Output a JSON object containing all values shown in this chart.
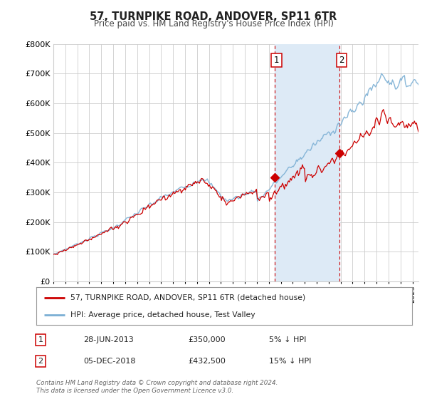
{
  "title": "57, TURNPIKE ROAD, ANDOVER, SP11 6TR",
  "subtitle": "Price paid vs. HM Land Registry's House Price Index (HPI)",
  "ylim": [
    0,
    800000
  ],
  "xlim_start": 1995.0,
  "xlim_end": 2025.5,
  "sale1_year": 2013.49,
  "sale1_price": 350000,
  "sale1_label": "1",
  "sale2_year": 2018.92,
  "sale2_price": 432500,
  "sale2_label": "2",
  "hpi_color": "#7bafd4",
  "price_color": "#cc0000",
  "vline_color": "#cc0000",
  "shaded_color": "#ddeaf6",
  "legend_label1": "57, TURNPIKE ROAD, ANDOVER, SP11 6TR (detached house)",
  "legend_label2": "HPI: Average price, detached house, Test Valley",
  "table_row1": [
    "1",
    "28-JUN-2013",
    "£350,000",
    "5% ↓ HPI"
  ],
  "table_row2": [
    "2",
    "05-DEC-2018",
    "£432,500",
    "15% ↓ HPI"
  ],
  "footnote": "Contains HM Land Registry data © Crown copyright and database right 2024.\nThis data is licensed under the Open Government Licence v3.0.",
  "background_color": "#ffffff",
  "plot_bg_color": "#ffffff"
}
